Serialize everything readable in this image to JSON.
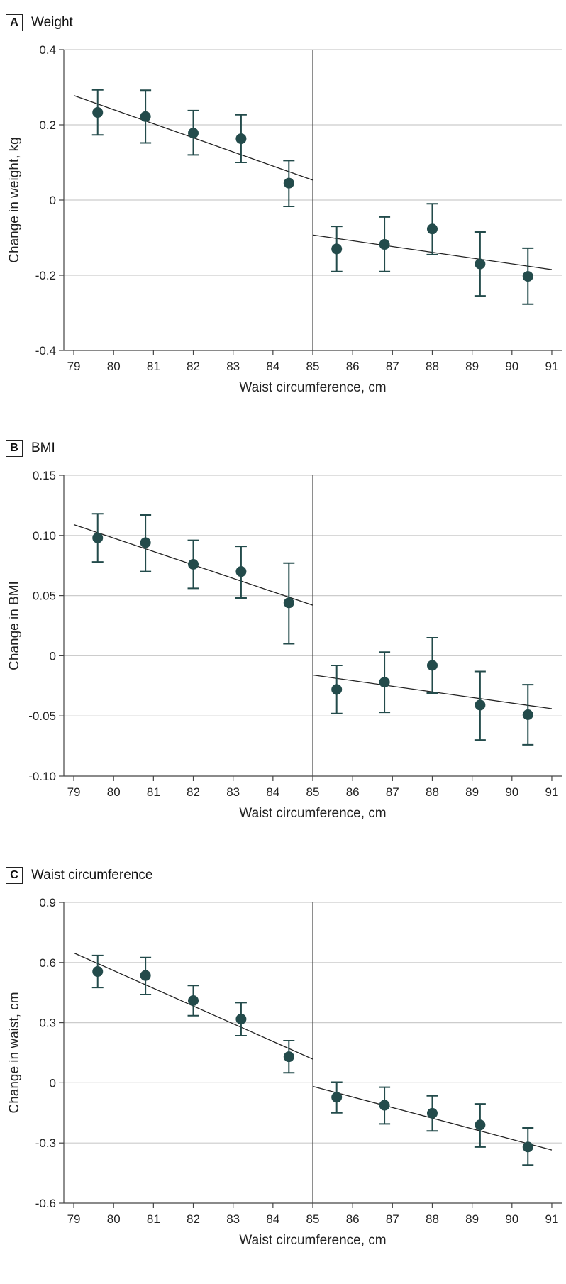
{
  "colors": {
    "marker": "#234b4b",
    "fit_line": "#222222",
    "grid": "#cccccc",
    "axis": "#444444"
  },
  "chart_data": [
    {
      "type": "scatter",
      "panel_label": "A",
      "title": "Weight",
      "xlabel": "Waist circumference, cm",
      "ylabel": "Change in weight, kg",
      "xlim": [
        78.75,
        91.25
      ],
      "ylim": [
        -0.4,
        0.4
      ],
      "xticks": [
        79,
        80,
        81,
        82,
        83,
        84,
        85,
        86,
        87,
        88,
        89,
        90,
        91
      ],
      "yticks": [
        -0.4,
        -0.2,
        0,
        0.2,
        0.4
      ],
      "ytick_labels": [
        "-0.4",
        "-0.2",
        "0",
        "0.2",
        "0.4"
      ],
      "grid": "horizontal",
      "cutoff": 85,
      "points": [
        {
          "x": 79.6,
          "y": 0.233,
          "lo": 0.173,
          "hi": 0.293
        },
        {
          "x": 80.8,
          "y": 0.222,
          "lo": 0.152,
          "hi": 0.292
        },
        {
          "x": 82.0,
          "y": 0.178,
          "lo": 0.12,
          "hi": 0.238
        },
        {
          "x": 83.2,
          "y": 0.163,
          "lo": 0.1,
          "hi": 0.227
        },
        {
          "x": 84.4,
          "y": 0.045,
          "lo": -0.017,
          "hi": 0.105
        },
        {
          "x": 85.6,
          "y": -0.13,
          "lo": -0.19,
          "hi": -0.07
        },
        {
          "x": 86.8,
          "y": -0.118,
          "lo": -0.19,
          "hi": -0.045
        },
        {
          "x": 88.0,
          "y": -0.077,
          "lo": -0.145,
          "hi": -0.01
        },
        {
          "x": 89.2,
          "y": -0.17,
          "lo": -0.255,
          "hi": -0.085
        },
        {
          "x": 90.4,
          "y": -0.203,
          "lo": -0.277,
          "hi": -0.128
        }
      ],
      "fit_lines": [
        {
          "x": [
            79,
            85
          ],
          "y": [
            0.278,
            0.053
          ]
        },
        {
          "x": [
            85,
            91
          ],
          "y": [
            -0.093,
            -0.185
          ]
        }
      ]
    },
    {
      "type": "scatter",
      "panel_label": "B",
      "title": "BMI",
      "xlabel": "Waist circumference, cm",
      "ylabel": "Change in BMI",
      "xlim": [
        78.75,
        91.25
      ],
      "ylim": [
        -0.1,
        0.15
      ],
      "xticks": [
        79,
        80,
        81,
        82,
        83,
        84,
        85,
        86,
        87,
        88,
        89,
        90,
        91
      ],
      "yticks": [
        -0.1,
        -0.05,
        0,
        0.05,
        0.1,
        0.15
      ],
      "ytick_labels": [
        "-0.10",
        "-0.05",
        "0",
        "0.05",
        "0.10",
        "0.15"
      ],
      "grid": "horizontal",
      "cutoff": 85,
      "points": [
        {
          "x": 79.6,
          "y": 0.098,
          "lo": 0.078,
          "hi": 0.118
        },
        {
          "x": 80.8,
          "y": 0.094,
          "lo": 0.07,
          "hi": 0.117
        },
        {
          "x": 82.0,
          "y": 0.076,
          "lo": 0.056,
          "hi": 0.096
        },
        {
          "x": 83.2,
          "y": 0.07,
          "lo": 0.048,
          "hi": 0.091
        },
        {
          "x": 84.4,
          "y": 0.044,
          "lo": 0.01,
          "hi": 0.077
        },
        {
          "x": 85.6,
          "y": -0.028,
          "lo": -0.048,
          "hi": -0.008
        },
        {
          "x": 86.8,
          "y": -0.022,
          "lo": -0.047,
          "hi": 0.003
        },
        {
          "x": 88.0,
          "y": -0.008,
          "lo": -0.031,
          "hi": 0.015
        },
        {
          "x": 89.2,
          "y": -0.041,
          "lo": -0.07,
          "hi": -0.013
        },
        {
          "x": 90.4,
          "y": -0.049,
          "lo": -0.074,
          "hi": -0.024
        }
      ],
      "fit_lines": [
        {
          "x": [
            79,
            85
          ],
          "y": [
            0.109,
            0.042
          ]
        },
        {
          "x": [
            85,
            91
          ],
          "y": [
            -0.016,
            -0.044
          ]
        }
      ]
    },
    {
      "type": "scatter",
      "panel_label": "C",
      "title": "Waist circumference",
      "xlabel": "Waist circumference, cm",
      "ylabel": "Change in waist, cm",
      "xlim": [
        78.75,
        91.25
      ],
      "ylim": [
        -0.6,
        0.9
      ],
      "xticks": [
        79,
        80,
        81,
        82,
        83,
        84,
        85,
        86,
        87,
        88,
        89,
        90,
        91
      ],
      "yticks": [
        -0.6,
        -0.3,
        0,
        0.3,
        0.6,
        0.9
      ],
      "ytick_labels": [
        "-0.6",
        "-0.3",
        "0",
        "0.3",
        "0.6",
        "0.9"
      ],
      "grid": "horizontal",
      "cutoff": 85,
      "points": [
        {
          "x": 79.6,
          "y": 0.555,
          "lo": 0.475,
          "hi": 0.635
        },
        {
          "x": 80.8,
          "y": 0.535,
          "lo": 0.44,
          "hi": 0.625
        },
        {
          "x": 82.0,
          "y": 0.41,
          "lo": 0.335,
          "hi": 0.485
        },
        {
          "x": 83.2,
          "y": 0.318,
          "lo": 0.235,
          "hi": 0.4
        },
        {
          "x": 84.4,
          "y": 0.13,
          "lo": 0.05,
          "hi": 0.21
        },
        {
          "x": 85.6,
          "y": -0.072,
          "lo": -0.15,
          "hi": 0.003
        },
        {
          "x": 86.8,
          "y": -0.112,
          "lo": -0.205,
          "hi": -0.022
        },
        {
          "x": 88.0,
          "y": -0.152,
          "lo": -0.24,
          "hi": -0.065
        },
        {
          "x": 89.2,
          "y": -0.21,
          "lo": -0.32,
          "hi": -0.105
        },
        {
          "x": 90.4,
          "y": -0.32,
          "lo": -0.41,
          "hi": -0.225
        }
      ],
      "fit_lines": [
        {
          "x": [
            79,
            85
          ],
          "y": [
            0.648,
            0.118
          ]
        },
        {
          "x": [
            85,
            91
          ],
          "y": [
            -0.018,
            -0.335
          ]
        }
      ]
    }
  ]
}
